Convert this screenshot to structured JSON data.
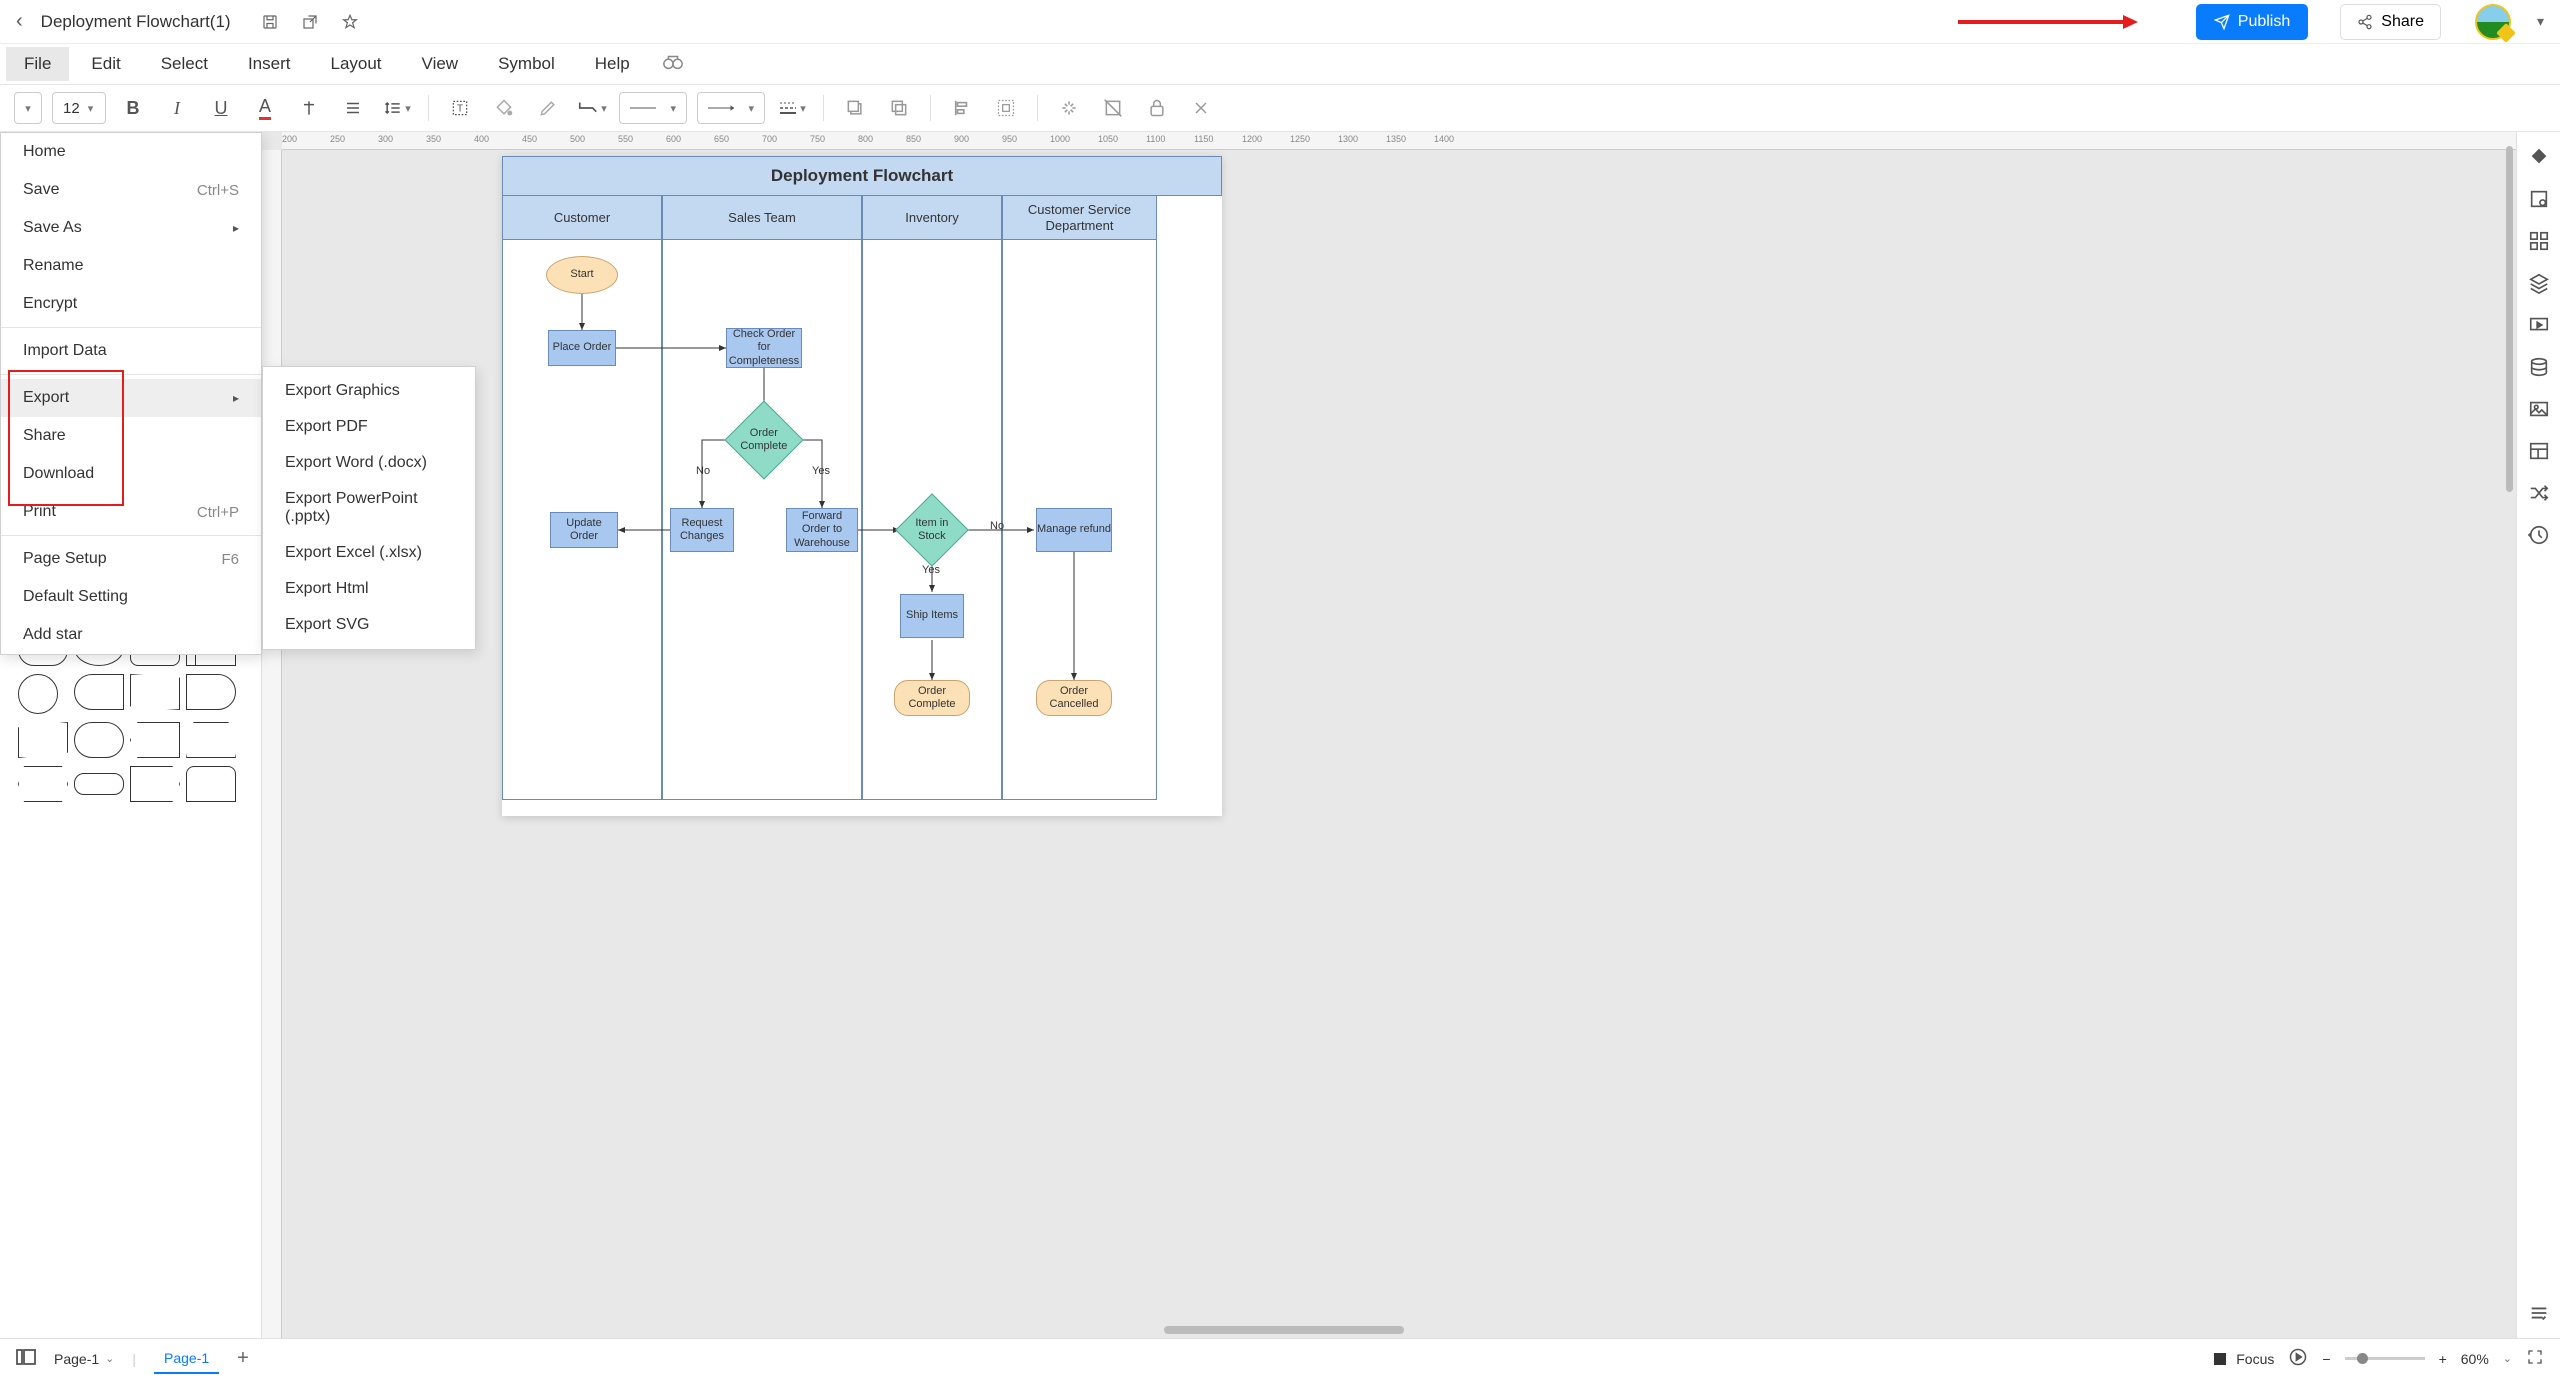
{
  "title": "Deployment Flowchart(1)",
  "publish": "Publish",
  "share": "Share",
  "menubar": [
    "File",
    "Edit",
    "Select",
    "Insert",
    "Layout",
    "View",
    "Symbol",
    "Help"
  ],
  "fontsize": "12",
  "file_menu": {
    "home": "Home",
    "save": "Save",
    "save_sc": "Ctrl+S",
    "saveas": "Save As",
    "rename": "Rename",
    "encrypt": "Encrypt",
    "import": "Import Data",
    "export": "Export",
    "share": "Share",
    "download": "Download",
    "print": "Print",
    "print_sc": "Ctrl+P",
    "pagesetup": "Page Setup",
    "pagesetup_sc": "F6",
    "default": "Default Setting",
    "addstar": "Add star"
  },
  "export_sub": {
    "graphics": "Export Graphics",
    "pdf": "Export PDF",
    "word": "Export Word (.docx)",
    "ppt": "Export PowerPoint (.pptx)",
    "excel": "Export Excel (.xlsx)",
    "html": "Export Html",
    "svg": "Export SVG"
  },
  "flowchart": {
    "title": "Deployment Flowchart",
    "cols": [
      "Customer",
      "Sales Team",
      "Inventory",
      "Customer Service Department"
    ],
    "start": "Start",
    "place_order": "Place Order",
    "check_order": "Check Order for Completeness",
    "order_complete": "Order Complete",
    "no": "No",
    "yes": "Yes",
    "request_changes": "Request Changes",
    "forward": "Forward Order to Warehouse",
    "update_order": "Update Order",
    "item_stock": "Item in Stock",
    "ship_items": "Ship Items",
    "manage_refund": "Manage refund",
    "order_complete_term": "Order Complete",
    "order_cancelled": "Order Cancelled",
    "colors": {
      "title_bg": "#c3d9f2",
      "box": "#a8c8f0",
      "diamond": "#8edcc8",
      "term": "#fce0b6"
    }
  },
  "ruler_ticks": [
    "200",
    "250",
    "300",
    "350",
    "400",
    "450",
    "500",
    "550",
    "600",
    "650",
    "700",
    "750",
    "800",
    "850",
    "900",
    "950",
    "1000",
    "1050",
    "1100",
    "1150",
    "1200",
    "1250",
    "1300",
    "1350",
    "1400"
  ],
  "shapes_yes": "Yes",
  "status": {
    "page_select": "Page-1",
    "page_tab": "Page-1",
    "focus": "Focus",
    "zoom": "60%"
  }
}
